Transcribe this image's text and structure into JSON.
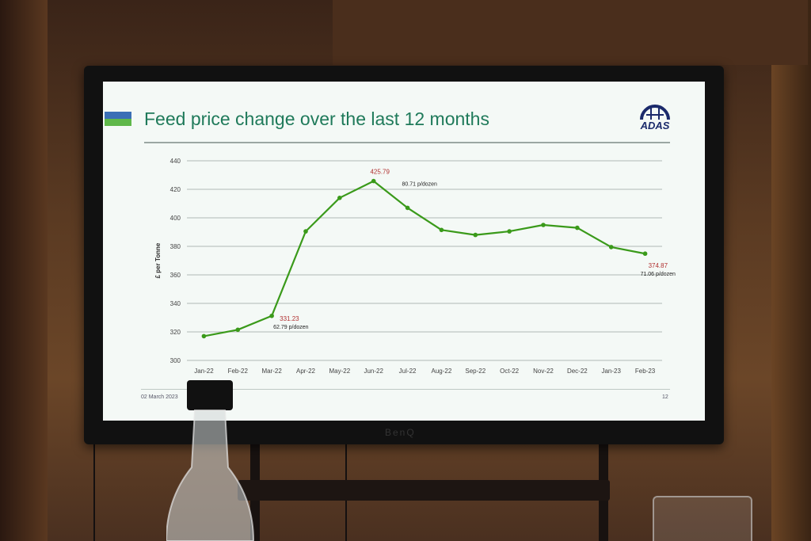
{
  "slide": {
    "title": "Feed price change over the last 12 months",
    "logo_text": "ADAS",
    "footer_date": "02 March 2023",
    "page_number": "12"
  },
  "monitor": {
    "brand": "BenQ"
  },
  "colors": {
    "line": "#3a9a1a",
    "annotation_red": "#b03030",
    "title_green": "#1f7a5a",
    "grid": "#9aa39f"
  },
  "chart_data": {
    "type": "line",
    "title": "",
    "xlabel": "",
    "ylabel": "£ per Tonne",
    "ylim": [
      300,
      440
    ],
    "yticks": [
      300,
      320,
      340,
      360,
      380,
      400,
      420,
      440
    ],
    "grid": true,
    "categories": [
      "Jan-22",
      "Feb-22",
      "Mar-22",
      "Apr-22",
      "May-22",
      "Jun-22",
      "Jul-22",
      "Aug-22",
      "Sep-22",
      "Oct-22",
      "Nov-22",
      "Dec-22",
      "Jan-23",
      "Feb-23"
    ],
    "series": [
      {
        "values": [
          317,
          321.5,
          331.23,
          390.5,
          414,
          425.79,
          407,
          391.5,
          388,
          390.5,
          395,
          393,
          379.5,
          374.87
        ]
      }
    ],
    "annotations": [
      {
        "category": "Mar-22",
        "value_label": "331.23",
        "sub_label": "62.79 p/dozen"
      },
      {
        "category": "Jun-22",
        "value_label": "425.79",
        "sub_label": "80.71 p/dozen"
      },
      {
        "category": "Feb-23",
        "value_label": "374.87",
        "sub_label": "71.06 p/dozen"
      }
    ]
  }
}
